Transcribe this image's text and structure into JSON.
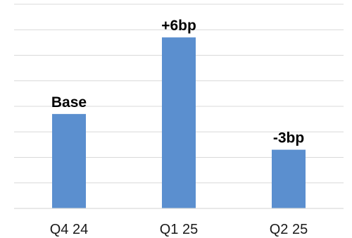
{
  "chart_data": {
    "type": "bar",
    "categories": [
      "Q4 24",
      "Q1 25",
      "Q2 25"
    ],
    "values": [
      3.7,
      6.7,
      2.3
    ],
    "data_labels": [
      "Base",
      "+6bp",
      "-3bp"
    ],
    "title": "",
    "xlabel": "",
    "ylabel": "",
    "ylim": [
      0,
      8
    ],
    "grid": true,
    "gridlines": 8,
    "bar_color": "#5b8fcf",
    "gridline_color": "#d9d9d9",
    "legend": "none"
  }
}
